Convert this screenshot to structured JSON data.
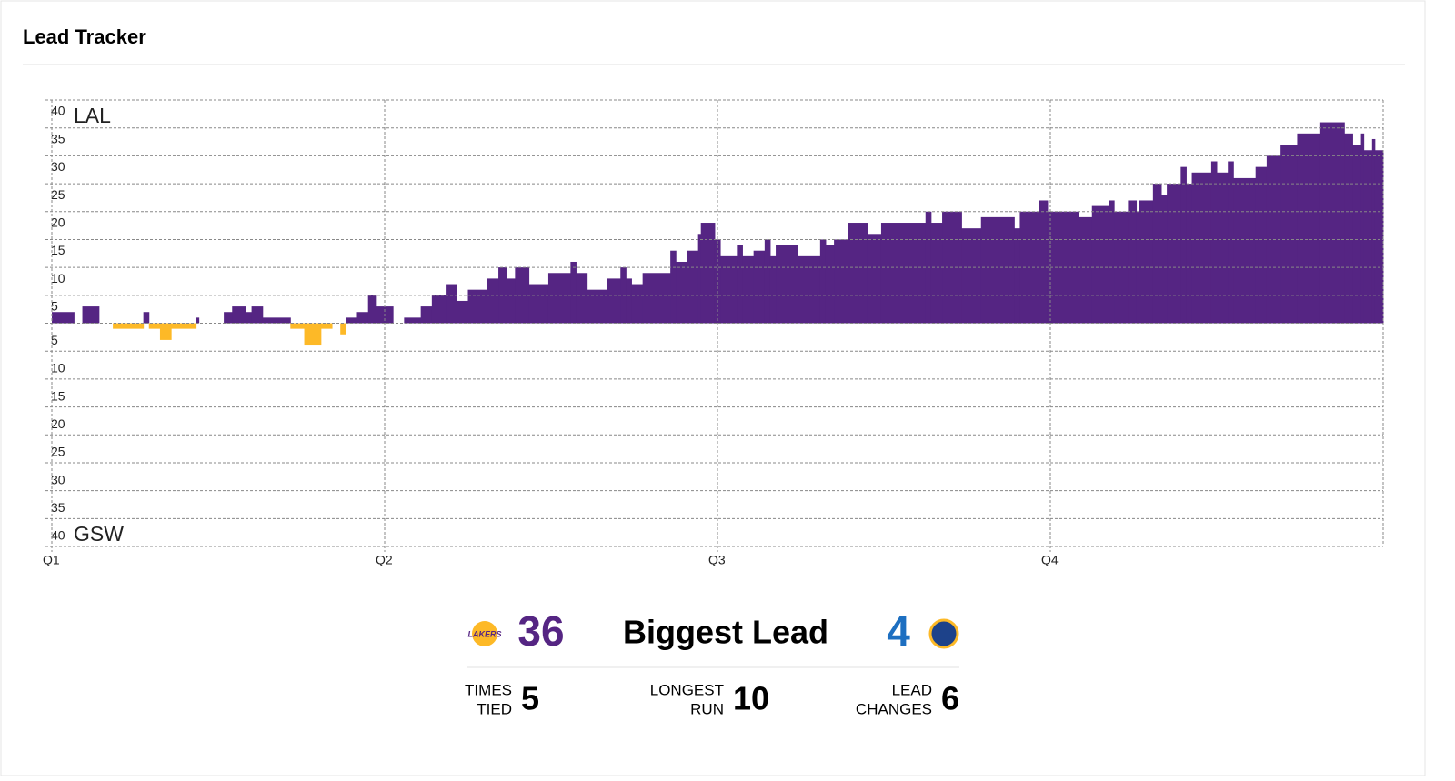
{
  "header": {
    "title": "Lead Tracker"
  },
  "chart_data": {
    "type": "step-lead",
    "top_team": "LAL",
    "bottom_team": "GSW",
    "colors": {
      "LAL": "#552583",
      "GSW": "#fdb927"
    },
    "x": [
      0,
      0.8,
      1.1,
      1.7,
      2.2,
      3.3,
      3.5,
      3.9,
      4.3,
      5.2,
      5.3,
      6.2,
      6.5,
      7.0,
      7.2,
      7.6,
      8.6,
      9.1,
      9.7,
      10.1,
      10.4,
      10.6,
      11.0,
      11.4,
      11.7,
      12.3,
      12.7,
      13.3,
      13.7,
      14.2,
      14.6,
      15.0,
      15.7,
      16.1,
      16.4,
      16.7,
      17.2,
      17.9,
      18.7,
      18.9,
      19.3,
      20.0,
      20.5,
      20.7,
      20.9,
      21.3,
      22.3,
      22.5,
      22.9,
      23.3,
      23.4,
      23.9,
      24.1,
      24.7,
      24.9,
      25.3,
      25.7,
      25.9,
      26.1,
      26.9,
      27.7,
      27.9,
      28.2,
      28.7,
      29.4,
      29.9,
      31.5,
      31.7,
      32.1,
      32.8,
      33.5,
      34.7,
      34.9,
      35.6,
      35.9,
      37.0,
      37.5,
      38.1,
      38.3,
      38.8,
      39.1,
      39.2,
      39.7,
      40.0,
      40.2,
      40.7,
      40.9,
      41.1,
      41.8,
      42.0,
      42.4,
      42.6,
      43.4,
      43.8,
      44.3,
      44.9,
      45.7,
      46.6,
      46.9,
      47.2,
      47.3,
      47.6,
      47.7
    ],
    "values": [
      2,
      0,
      3,
      0,
      -1,
      2,
      -1,
      -3,
      -1,
      1,
      0,
      2,
      3,
      2,
      3,
      1,
      -1,
      -4,
      -1,
      0,
      -2,
      1,
      2,
      5,
      3,
      0,
      1,
      3,
      5,
      7,
      4,
      6,
      8,
      10,
      8,
      10,
      7,
      9,
      11,
      9,
      6,
      8,
      10,
      8,
      7,
      9,
      13,
      11,
      13,
      16,
      18,
      15,
      12,
      14,
      12,
      13,
      15,
      12,
      14,
      12,
      15,
      14,
      15,
      18,
      16,
      18,
      20,
      18,
      20,
      17,
      19,
      17,
      20,
      22,
      20,
      19,
      21,
      22,
      20,
      22,
      20,
      22,
      25,
      23,
      25,
      28,
      25,
      27,
      29,
      27,
      29,
      26,
      28,
      30,
      32,
      34,
      36,
      34,
      32,
      34,
      31,
      33,
      31
    ],
    "xlim": [
      0,
      48
    ],
    "xticks": [
      {
        "value": 0,
        "label": "Q1"
      },
      {
        "value": 12,
        "label": "Q2"
      },
      {
        "value": 24,
        "label": "Q3"
      },
      {
        "value": 36,
        "label": "Q4"
      }
    ],
    "ylim": [
      -40,
      40
    ],
    "yticks": [
      40,
      35,
      30,
      25,
      20,
      15,
      10,
      5,
      {
        "value": -5,
        "label": "5"
      },
      {
        "value": -10,
        "label": "10"
      },
      {
        "value": -15,
        "label": "15"
      },
      {
        "value": -20,
        "label": "20"
      },
      {
        "value": -25,
        "label": "25"
      },
      {
        "value": -30,
        "label": "30"
      },
      {
        "value": -35,
        "label": "35"
      },
      {
        "value": -40,
        "label": "40"
      }
    ],
    "grid": true
  },
  "stats": {
    "biggest_lead_label": "Biggest Lead",
    "lal_biggest_lead": "36",
    "gsw_biggest_lead": "4",
    "items": [
      {
        "label1": "TIMES",
        "label2": "TIED",
        "value": "5"
      },
      {
        "label1": "LONGEST",
        "label2": "RUN",
        "value": "10"
      },
      {
        "label1": "LEAD",
        "label2": "CHANGES",
        "value": "6"
      }
    ]
  }
}
